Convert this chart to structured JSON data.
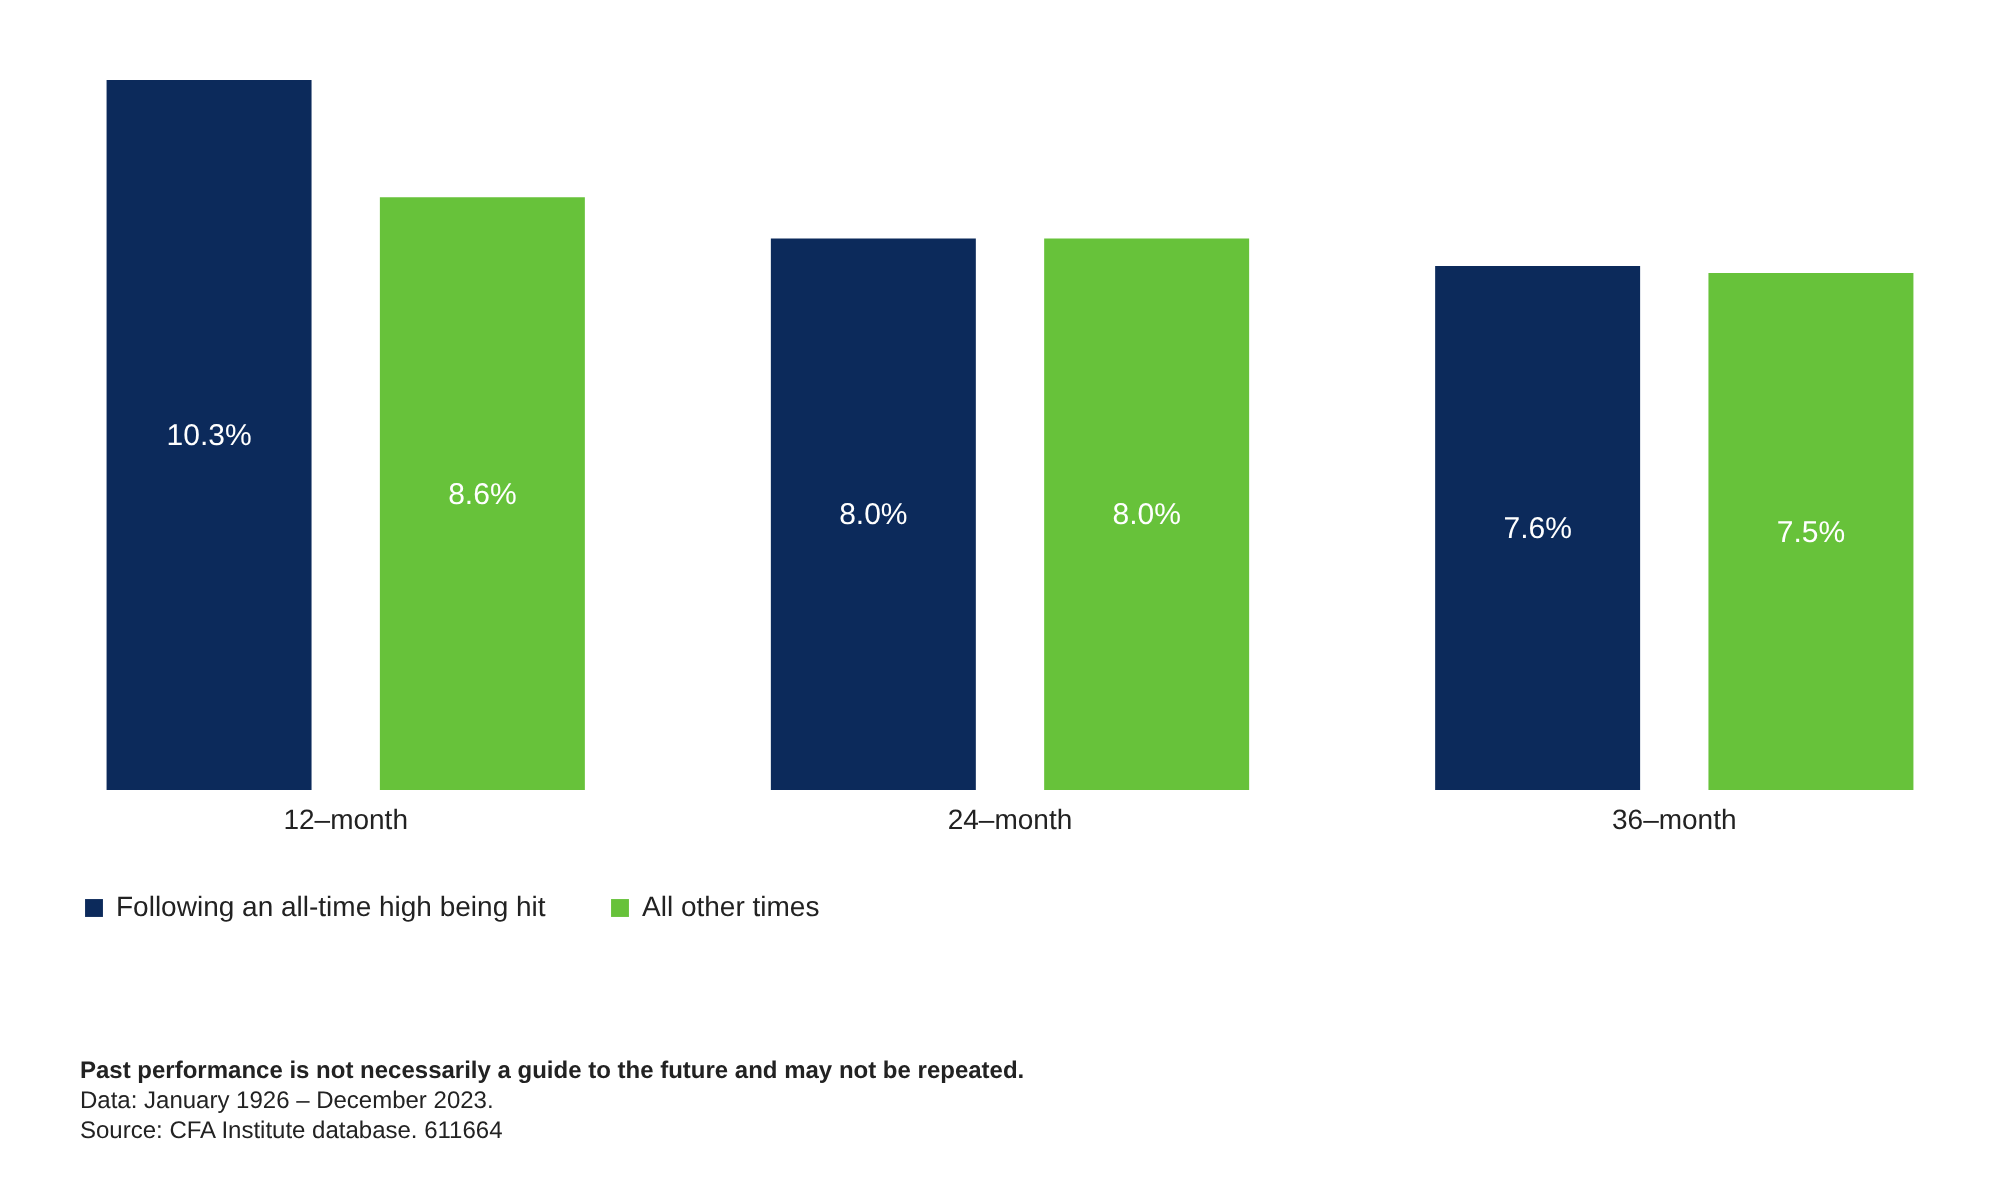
{
  "chart_data": {
    "type": "bar",
    "categories": [
      "12–month",
      "24–month",
      "36–month"
    ],
    "series": [
      {
        "name": "Following an all-time high being hit",
        "color": "#0c2a5b",
        "values": [
          10.3,
          8.0,
          7.6
        ],
        "value_labels": [
          "10.3%",
          "8.0%",
          "7.6%"
        ]
      },
      {
        "name": "All other times",
        "color": "#67c23a",
        "values": [
          8.6,
          8.0,
          7.5
        ],
        "value_labels": [
          "8.6%",
          "8.0%",
          "7.5%"
        ]
      }
    ],
    "legend": "bottom",
    "grid": false,
    "annotations": [
      "Past performance is not necessarily a guide to the future and may not be repeated.",
      "Data: January 1926 – December 2023.",
      "Source: CFA Institute database. 611664"
    ]
  }
}
